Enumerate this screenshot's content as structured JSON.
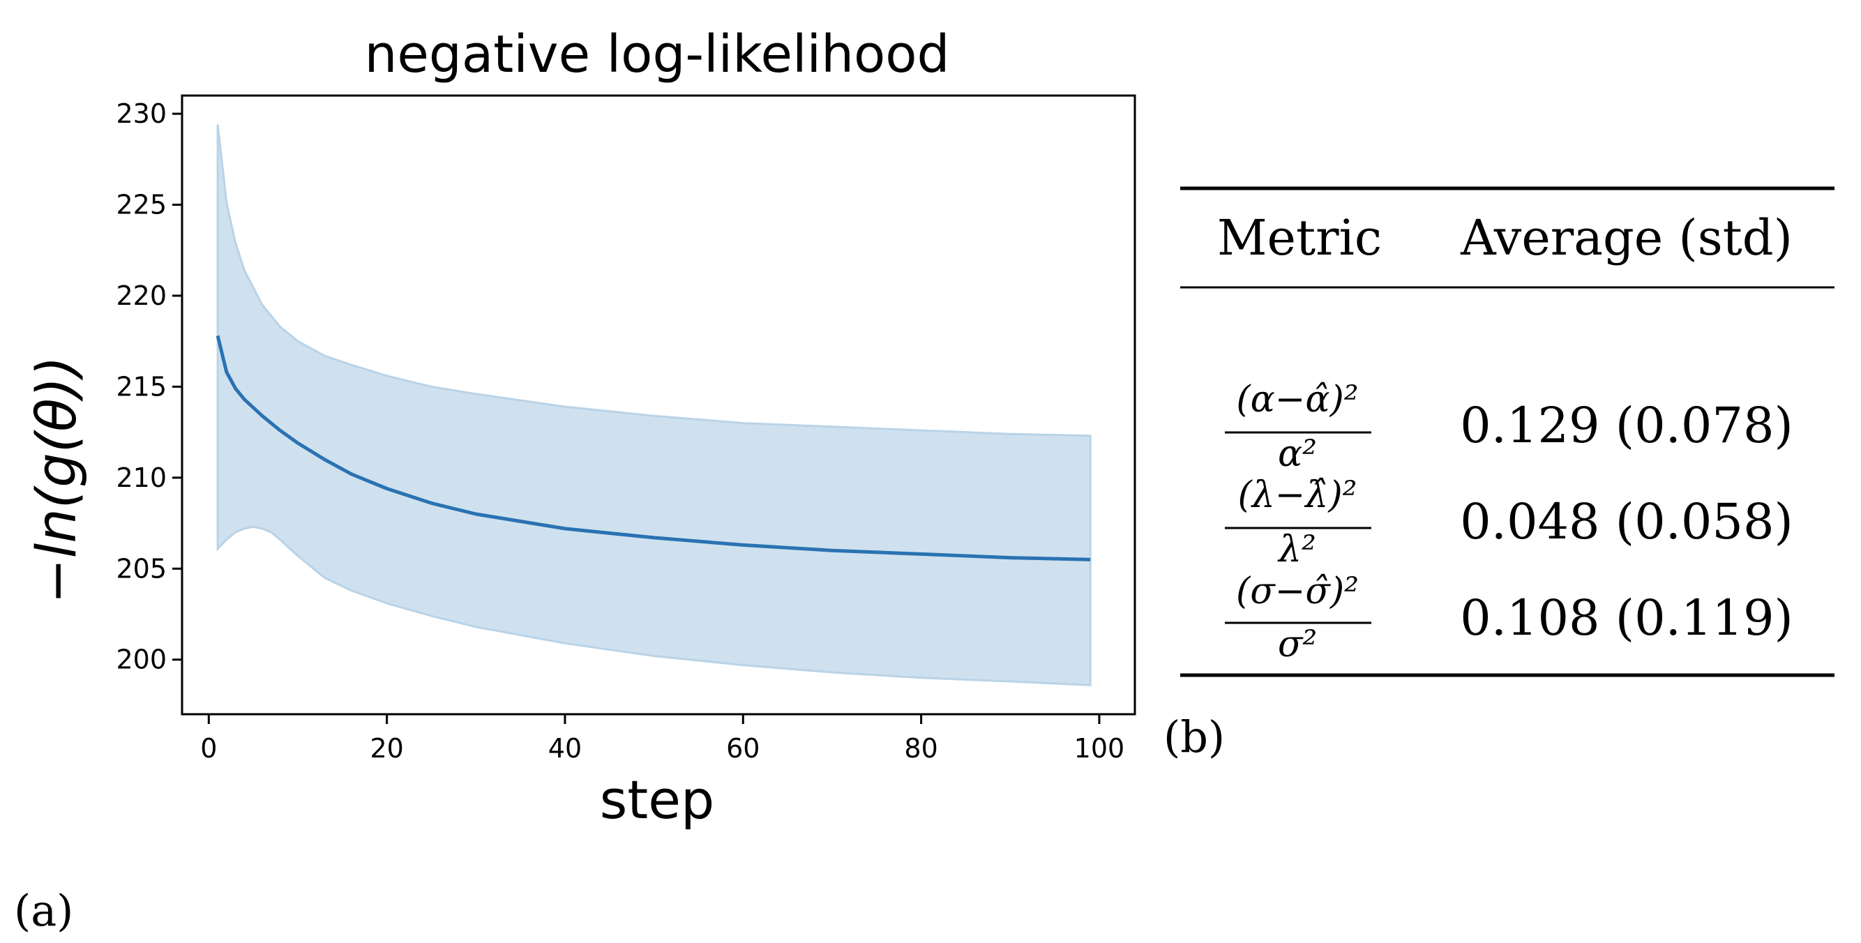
{
  "chart_data": {
    "type": "line",
    "title": "negative log-likelihood",
    "xlabel": "step",
    "ylabel": "−ln(g(θ))",
    "xlim": [
      -3,
      104
    ],
    "ylim": [
      197,
      231
    ],
    "xticks": [
      0,
      20,
      40,
      60,
      80,
      100
    ],
    "yticks": [
      200,
      205,
      210,
      215,
      220,
      225,
      230
    ],
    "grid": false,
    "colors": {
      "line": "#2a72b2",
      "band_fill": "#cfe1ef",
      "band_edge": "#b9d3e7"
    },
    "series": [
      {
        "name": "mean",
        "x": [
          1,
          2,
          3,
          4,
          6,
          8,
          10,
          13,
          16,
          20,
          25,
          30,
          40,
          50,
          60,
          70,
          80,
          90,
          99
        ],
        "values": [
          217.8,
          215.8,
          214.9,
          214.3,
          213.4,
          212.6,
          211.9,
          211.0,
          210.2,
          209.4,
          208.6,
          208.0,
          207.2,
          206.7,
          206.3,
          206.0,
          205.8,
          205.6,
          205.5
        ]
      },
      {
        "name": "upper bound",
        "x": [
          1,
          2,
          3,
          4,
          6,
          8,
          10,
          13,
          16,
          20,
          25,
          30,
          40,
          50,
          60,
          70,
          80,
          90,
          99
        ],
        "values": [
          229.4,
          225.1,
          222.9,
          221.4,
          219.5,
          218.3,
          217.5,
          216.7,
          216.2,
          215.6,
          215.0,
          214.6,
          213.9,
          213.4,
          213.0,
          212.8,
          212.6,
          212.4,
          212.3
        ]
      },
      {
        "name": "lower bound",
        "x": [
          1,
          2,
          3,
          4,
          5,
          6,
          7,
          8,
          10,
          13,
          16,
          20,
          25,
          30,
          40,
          50,
          60,
          70,
          80,
          90,
          99
        ],
        "values": [
          206.1,
          206.6,
          207.0,
          207.2,
          207.3,
          207.2,
          207.0,
          206.6,
          205.7,
          204.5,
          203.8,
          203.1,
          202.4,
          201.8,
          200.9,
          200.2,
          199.7,
          199.3,
          199.0,
          198.8,
          198.6
        ]
      }
    ]
  },
  "panel_a_label": "(a)",
  "panel_b_label": "(b)",
  "table": {
    "headers": [
      "Metric",
      "Average (std)"
    ],
    "rows": [
      {
        "num": "(α−α̂)²",
        "den": "α²",
        "value": "0.129 (0.078)"
      },
      {
        "num": "(λ−λ̂)²",
        "den": "λ²",
        "value": "0.048 (0.058)"
      },
      {
        "num": "(σ−σ̂)²",
        "den": "σ²",
        "value": "0.108 (0.119)"
      }
    ]
  }
}
